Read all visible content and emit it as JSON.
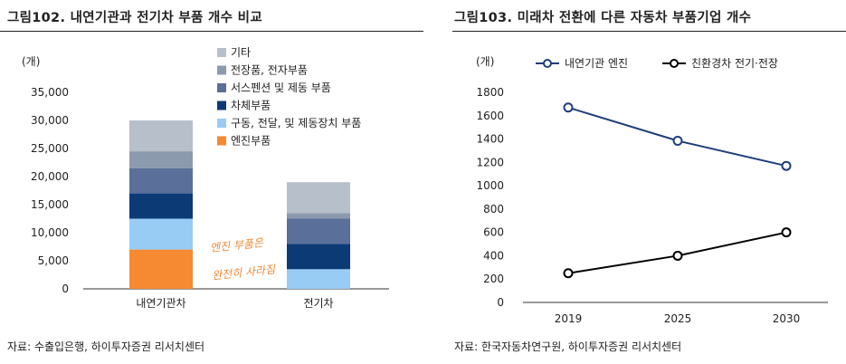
{
  "left": {
    "title": "그림102.  내연기관과 전기차 부품 개수 비교",
    "source": "자료: 수출입은행, 하이투자증권 리서치센터",
    "annotation": [
      "엔진 부품은",
      "완전히 사라짐"
    ],
    "chart_data": {
      "type": "bar",
      "stacked": true,
      "unit": "(개)",
      "categories": [
        "내연기관차",
        "전기차"
      ],
      "ylim": [
        0,
        35000
      ],
      "yticks": [
        0,
        5000,
        10000,
        15000,
        20000,
        25000,
        30000,
        35000
      ],
      "ytick_labels": [
        "0",
        "5,000",
        "10,000",
        "15,000",
        "20,000",
        "25,000",
        "30,000",
        "35,000"
      ],
      "series": [
        {
          "name": "엔진부품",
          "color": "#f58a33",
          "values": [
            7000,
            0
          ]
        },
        {
          "name": "구동, 전달, 및 제동장치 부품",
          "color": "#99ccf5",
          "values": [
            5500,
            3500
          ]
        },
        {
          "name": "차체부품",
          "color": "#0c3a75",
          "values": [
            4500,
            4500
          ]
        },
        {
          "name": "서스펜션 및 제동 부품",
          "color": "#5a6f99",
          "values": [
            4500,
            4500
          ]
        },
        {
          "name": "전장품, 전자부품",
          "color": "#8c9aad",
          "values": [
            3000,
            1000
          ]
        },
        {
          "name": "기타",
          "color": "#b7bfcb",
          "values": [
            5500,
            5500
          ]
        }
      ],
      "legend_order": [
        "기타",
        "전장품, 전자부품",
        "서스펜션 및 제동 부품",
        "차체부품",
        "구동, 전달, 및 제동장치 부품",
        "엔진부품"
      ],
      "legend_position": "top-right"
    }
  },
  "right": {
    "title": "그림103.  미래차 전환에 다른 자동차 부품기업 개수",
    "source": "자료: 한국자동차연구원, 하이투자증권 리서치센터",
    "chart_data": {
      "type": "line",
      "unit": "(개)",
      "x": [
        "2019",
        "2025",
        "2030"
      ],
      "ylim": [
        0,
        1800
      ],
      "yticks": [
        0,
        200,
        400,
        600,
        800,
        1000,
        1200,
        1400,
        1600,
        1800
      ],
      "series": [
        {
          "name": "내연기관 엔진",
          "color": "#1f3f7a",
          "values": [
            1670,
            1385,
            1170
          ]
        },
        {
          "name": "친환경차 전기·전장",
          "color": "#000000",
          "values": [
            250,
            400,
            600
          ]
        }
      ],
      "legend_position": "top"
    }
  }
}
